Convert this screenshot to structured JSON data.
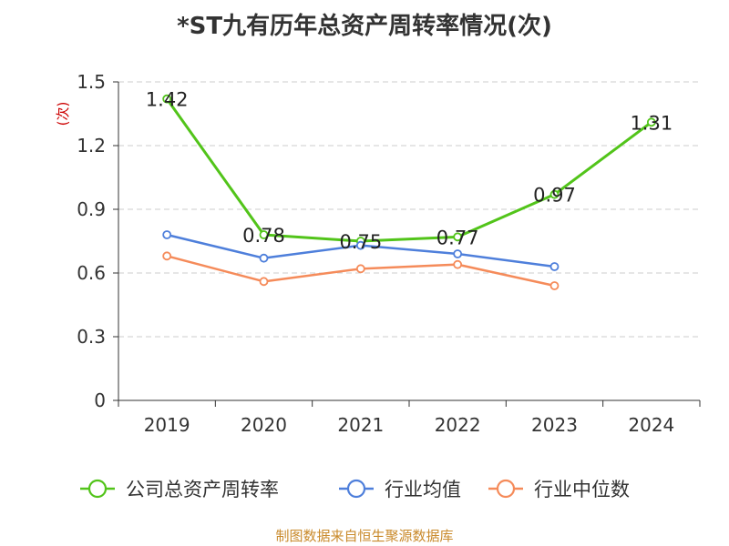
{
  "chart_data": {
    "type": "line",
    "title": "*ST九有历年总资产周转率情况(次)",
    "ylabel": "(次)",
    "categories": [
      "2019",
      "2020",
      "2021",
      "2022",
      "2023",
      "2024"
    ],
    "ylim": [
      0,
      1.5
    ],
    "yticks": [
      "0",
      "0.3",
      "0.6",
      "0.9",
      "1.2",
      "1.5"
    ],
    "grid": true,
    "legend_position": "bottom",
    "series": [
      {
        "name": "公司总资产周转率",
        "color": "#52c41a",
        "values": [
          1.42,
          0.78,
          0.75,
          0.77,
          0.97,
          1.31
        ],
        "labels": [
          "1.42",
          "0.78",
          "0.75",
          "0.77",
          "0.97",
          "1.31"
        ]
      },
      {
        "name": "行业均值",
        "color": "#4e7fdb",
        "values": [
          0.78,
          0.67,
          0.73,
          0.69,
          0.63,
          null
        ]
      },
      {
        "name": "行业中位数",
        "color": "#f58b5a",
        "values": [
          0.68,
          0.56,
          0.62,
          0.64,
          0.54,
          null
        ]
      }
    ]
  },
  "source": "制图数据来自恒生聚源数据库",
  "colors": {
    "ylabel": "#cc0000",
    "source": "#c98a2b",
    "axis": "#333333",
    "grid": "#cccccc"
  }
}
